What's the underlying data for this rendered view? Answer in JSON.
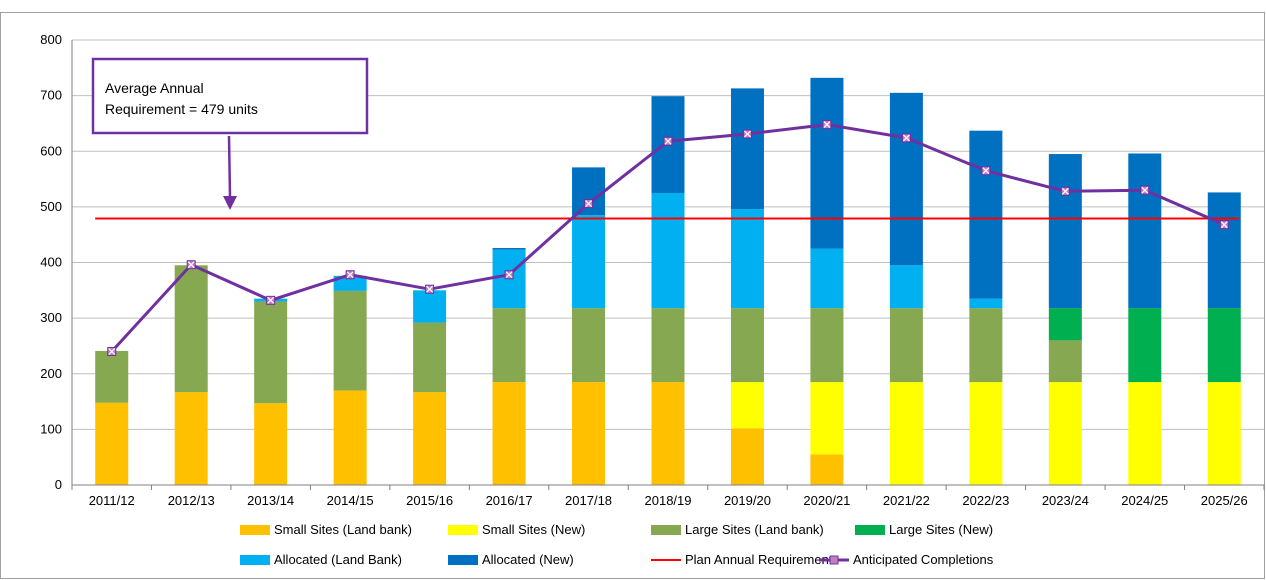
{
  "chart_data": {
    "type": "bar",
    "stacked": true,
    "categories": [
      "2011/12",
      "2012/13",
      "2013/14",
      "2014/15",
      "2015/16",
      "2016/17",
      "2017/18",
      "2018/19",
      "2019/20",
      "2020/21",
      "2021/22",
      "2022/23",
      "2023/24",
      "2024/25",
      "2025/26"
    ],
    "ylim": [
      0,
      800
    ],
    "yticks": [
      0,
      100,
      200,
      300,
      400,
      500,
      600,
      700,
      800
    ],
    "grid": true,
    "legend_position": "bottom",
    "series": [
      {
        "name": "Small Sites (Land bank)",
        "color": "#FFC000",
        "values": [
          148,
          167,
          147,
          170,
          167,
          185,
          185,
          185,
          102,
          55,
          0,
          0,
          0,
          0,
          0
        ]
      },
      {
        "name": "Small Sites (New)",
        "color": "#FFFF00",
        "values": [
          0,
          0,
          0,
          0,
          0,
          0,
          0,
          0,
          83,
          130,
          185,
          185,
          185,
          185,
          185
        ]
      },
      {
        "name": "Large Sites (Land bank)",
        "color": "#86A850",
        "values": [
          93,
          228,
          183,
          179,
          125,
          133,
          133,
          133,
          133,
          133,
          133,
          133,
          75,
          0,
          0
        ]
      },
      {
        "name": "Large Sites (New)",
        "color": "#00B050",
        "values": [
          0,
          0,
          0,
          0,
          0,
          0,
          0,
          0,
          0,
          0,
          0,
          0,
          58,
          133,
          133
        ]
      },
      {
        "name": "Allocated (Land Bank)",
        "color": "#00B0F0",
        "values": [
          0,
          0,
          5,
          27,
          58,
          105,
          167,
          207,
          178,
          107,
          77,
          17,
          0,
          0,
          0
        ]
      },
      {
        "name": "Allocated (New)",
        "color": "#0070C0",
        "values": [
          0,
          0,
          0,
          0,
          0,
          3,
          86,
          174,
          217,
          307,
          310,
          302,
          277,
          278,
          208
        ]
      }
    ],
    "lines": [
      {
        "name": "Plan Annual Requirement",
        "color": "#FF0000",
        "values": [
          479,
          479,
          479,
          479,
          479,
          479,
          479,
          479,
          479,
          479,
          479,
          479,
          479,
          479,
          479
        ]
      },
      {
        "name": "Anticipated Completions",
        "color": "#7030A0",
        "marker_color": "#C080C0",
        "values": [
          240,
          396,
          332,
          378,
          352,
          378,
          506,
          618,
          631,
          648,
          624,
          565,
          528,
          530,
          468
        ]
      }
    ],
    "annotation": {
      "line1": "Average Annual",
      "line2": "Requirement = 479 units",
      "color": "#7030A0"
    }
  }
}
